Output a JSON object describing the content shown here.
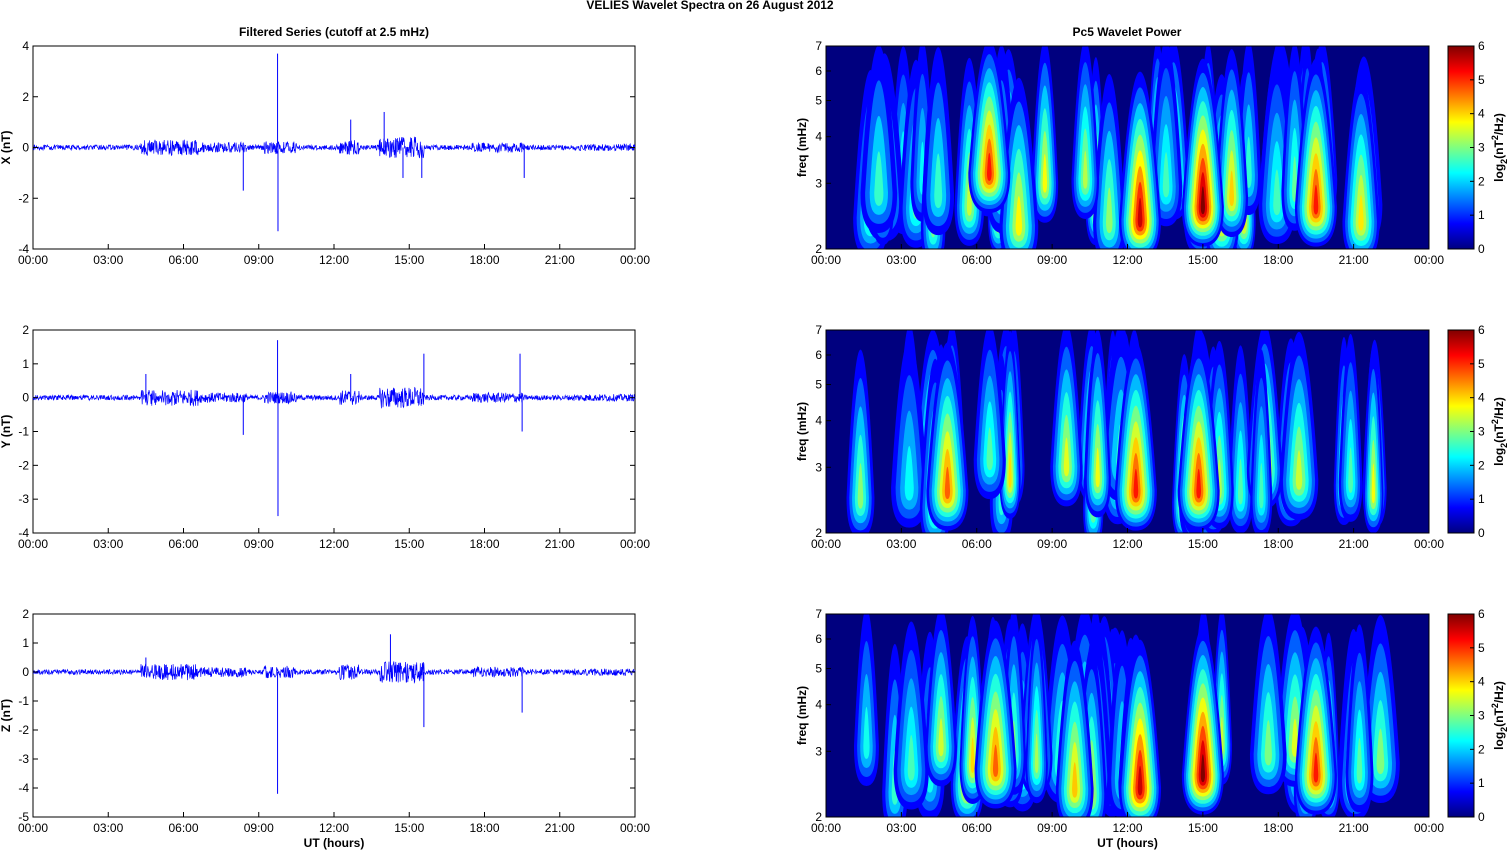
{
  "figure": {
    "suptitle": "VELIES Wavelet Spectra on 26 August    2012",
    "left_title": "Filtered Series (cutoff at 2.5 mHz)",
    "right_title": "Pc5 Wavelet Power",
    "colors": {
      "trace": "#0000ff",
      "background": "#00007f"
    }
  },
  "chart_data": [
    {
      "type": "line",
      "ylabel": "X (nT)",
      "xlabel": "",
      "x_ticks": [
        "00:00",
        "03:00",
        "06:00",
        "09:00",
        "12:00",
        "15:00",
        "18:00",
        "21:00",
        "00:00"
      ],
      "ylim": [
        -4,
        4
      ],
      "y_ticks": [
        "4",
        "2",
        "0",
        "-2",
        "-4"
      ],
      "series": [
        {
          "values": [
            {
              "x": "00:00",
              "y": 0
            },
            {
              "x": "04:30",
              "y": 0
            },
            {
              "x": "08:23",
              "y": -1.7
            },
            {
              "x": "09:45",
              "y": 3.7
            },
            {
              "x": "09:46",
              "y": -3.3
            },
            {
              "x": "12:40",
              "y": 1.1
            },
            {
              "x": "14:00",
              "y": 1.4
            },
            {
              "x": "14:45",
              "y": -1.2
            },
            {
              "x": "15:30",
              "y": -1.2
            },
            {
              "x": "19:35",
              "y": -1.2
            },
            {
              "x": "00:00",
              "y": 0
            }
          ]
        }
      ]
    },
    {
      "type": "line",
      "ylabel": "Y (nT)",
      "xlabel": "",
      "x_ticks": [
        "00:00",
        "03:00",
        "06:00",
        "09:00",
        "12:00",
        "15:00",
        "18:00",
        "21:00",
        "00:00"
      ],
      "ylim": [
        -4,
        2
      ],
      "y_ticks": [
        "2",
        "1",
        "0",
        "-1",
        "-2",
        "-3",
        "-4"
      ],
      "series": [
        {
          "values": [
            {
              "x": "00:00",
              "y": 0
            },
            {
              "x": "04:30",
              "y": 0.7
            },
            {
              "x": "08:23",
              "y": -1.1
            },
            {
              "x": "09:45",
              "y": 1.7
            },
            {
              "x": "09:46",
              "y": -3.5
            },
            {
              "x": "12:40",
              "y": 0.7
            },
            {
              "x": "15:35",
              "y": 1.3
            },
            {
              "x": "19:25",
              "y": 1.3
            },
            {
              "x": "19:30",
              "y": -1.0
            },
            {
              "x": "00:00",
              "y": 0
            }
          ]
        }
      ]
    },
    {
      "type": "line",
      "ylabel": "Z (nT)",
      "xlabel": "UT (hours)",
      "x_ticks": [
        "00:00",
        "03:00",
        "06:00",
        "09:00",
        "12:00",
        "15:00",
        "18:00",
        "21:00",
        "00:00"
      ],
      "ylim": [
        -5,
        2
      ],
      "y_ticks": [
        "2",
        "1",
        "0",
        "-1",
        "-2",
        "-3",
        "-4",
        "-5"
      ],
      "series": [
        {
          "values": [
            {
              "x": "00:00",
              "y": 0
            },
            {
              "x": "04:30",
              "y": 0.5
            },
            {
              "x": "09:45",
              "y": -4.2
            },
            {
              "x": "14:15",
              "y": 1.3
            },
            {
              "x": "15:35",
              "y": -1.9
            },
            {
              "x": "19:30",
              "y": -1.4
            },
            {
              "x": "00:00",
              "y": 0
            }
          ]
        }
      ]
    },
    {
      "type": "heatmap",
      "ylabel": "freq (mHz)",
      "xlabel": "",
      "y_scale": "log",
      "ylim": [
        2,
        7
      ],
      "x_ticks": [
        "00:00",
        "03:00",
        "06:00",
        "09:00",
        "12:00",
        "15:00",
        "18:00",
        "21:00",
        "00:00"
      ],
      "y_ticks": [
        "7",
        "6",
        "5",
        "4",
        "3",
        "2"
      ],
      "colorbar": {
        "label": "log2(nT2/Hz)",
        "range": [
          0,
          6
        ],
        "ticks": [
          "6",
          "5",
          "4",
          "3",
          "2",
          "1",
          "0"
        ]
      },
      "hotspots": [
        {
          "t": "06:30",
          "f": 3.2,
          "power": 5.0
        },
        {
          "t": "12:30",
          "f": 2.4,
          "power": 5.5
        },
        {
          "t": "15:00",
          "f": 2.6,
          "power": 6.0
        },
        {
          "t": "19:30",
          "f": 2.6,
          "power": 5.0
        }
      ]
    },
    {
      "type": "heatmap",
      "ylabel": "freq (mHz)",
      "xlabel": "",
      "y_scale": "log",
      "ylim": [
        2,
        7
      ],
      "x_ticks": [
        "00:00",
        "03:00",
        "06:00",
        "09:00",
        "12:00",
        "15:00",
        "18:00",
        "21:00",
        "00:00"
      ],
      "y_ticks": [
        "7",
        "6",
        "5",
        "4",
        "3",
        "2"
      ],
      "colorbar": {
        "label": "log2(nT2/Hz)",
        "range": [
          0,
          6
        ],
        "ticks": [
          "6",
          "5",
          "4",
          "3",
          "2",
          "1",
          "0"
        ]
      },
      "hotspots": [
        {
          "t": "04:50",
          "f": 2.6,
          "power": 4.5
        },
        {
          "t": "12:20",
          "f": 2.6,
          "power": 5.0
        },
        {
          "t": "14:50",
          "f": 2.6,
          "power": 5.0
        }
      ]
    },
    {
      "type": "heatmap",
      "ylabel": "freq (mHz)",
      "xlabel": "UT (hours)",
      "y_scale": "log",
      "ylim": [
        2,
        7
      ],
      "x_ticks": [
        "00:00",
        "03:00",
        "06:00",
        "09:00",
        "12:00",
        "15:00",
        "18:00",
        "21:00",
        "00:00"
      ],
      "y_ticks": [
        "7",
        "6",
        "5",
        "4",
        "3",
        "2"
      ],
      "colorbar": {
        "label": "log2(nT2/Hz)",
        "range": [
          0,
          6
        ],
        "ticks": [
          "6",
          "5",
          "4",
          "3",
          "2",
          "1",
          "0"
        ]
      },
      "hotspots": [
        {
          "t": "06:45",
          "f": 2.7,
          "power": 4.5
        },
        {
          "t": "12:30",
          "f": 2.4,
          "power": 5.5
        },
        {
          "t": "15:00",
          "f": 2.6,
          "power": 6.0
        },
        {
          "t": "19:30",
          "f": 2.6,
          "power": 5.0
        }
      ]
    }
  ]
}
